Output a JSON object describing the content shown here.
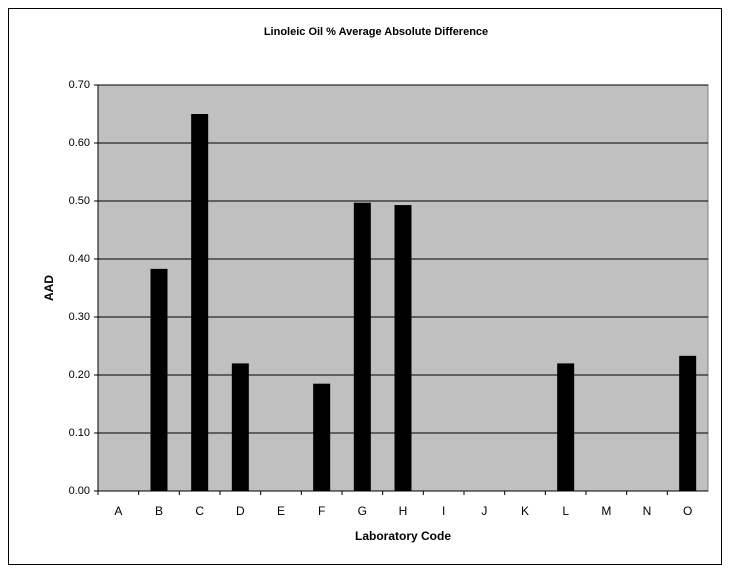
{
  "chart_data": {
    "type": "bar",
    "title": "Linoleic Oil % Average Absolute Difference",
    "x_label": "Laboratory Code",
    "y_label": "AAD",
    "categories": [
      "A",
      "B",
      "C",
      "D",
      "E",
      "F",
      "G",
      "H",
      "I",
      "J",
      "K",
      "L",
      "M",
      "N",
      "O"
    ],
    "values": [
      null,
      0.383,
      0.65,
      0.22,
      null,
      0.185,
      0.497,
      0.493,
      null,
      null,
      null,
      0.22,
      null,
      null,
      0.233
    ],
    "color": "#000000",
    "ylim": [
      0,
      0.7
    ],
    "yticks": [
      {
        "value": 0,
        "label": "0.00"
      },
      {
        "value": 0.1,
        "label": "0.10"
      },
      {
        "value": 0.2,
        "label": "0.20"
      },
      {
        "value": 0.3,
        "label": "0.30"
      },
      {
        "value": 0.4,
        "label": "0.40"
      },
      {
        "value": 0.5,
        "label": "0.50"
      },
      {
        "value": 0.6,
        "label": "0.60"
      },
      {
        "value": 0.7,
        "label": "0.70"
      }
    ],
    "grid": true
  }
}
